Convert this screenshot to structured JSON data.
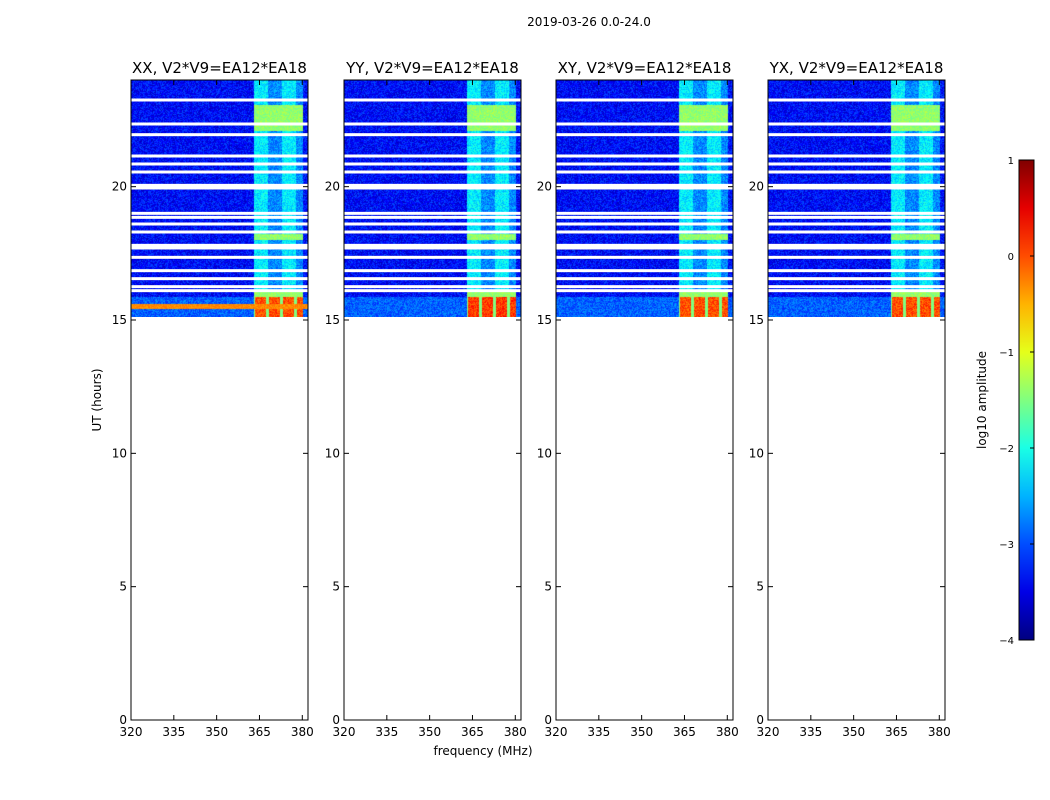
{
  "figure": {
    "suptitle": "2019-03-26 0.0-24.0",
    "xlabel": "frequency (MHz)",
    "ylabel": "UT (hours)"
  },
  "colors": {
    "colormap": "jet",
    "background": "#ffffff",
    "axis": "#000000",
    "flag": "#ffffff"
  },
  "chart_data": {
    "type": "heatmap",
    "title": "2019-03-26 0.0-24.0",
    "xlabel": "frequency (MHz)",
    "ylabel": "UT (hours)",
    "xlim": [
      320,
      382
    ],
    "ylim": [
      0,
      24
    ],
    "xticks": [
      320,
      335,
      350,
      365,
      380
    ],
    "yticks": [
      0,
      5,
      10,
      15,
      20
    ],
    "data_range_hours": [
      15.1,
      24.0
    ],
    "bright_band_mhz": [
      363,
      380
    ],
    "flagged_rows_hours": [
      23.25,
      22.35,
      21.95,
      21.15,
      20.85,
      20.55,
      20.05,
      19.95,
      19.0,
      18.85,
      18.6,
      18.3,
      17.8,
      17.7,
      17.35,
      16.85,
      16.55,
      16.25,
      16.1
    ],
    "panels": [
      {
        "name": "XX",
        "title": "XX, V2*V9=EA12*EA18",
        "peak_log_amplitude": 0.3,
        "has_rfi_line": true
      },
      {
        "name": "YY",
        "title": "YY, V2*V9=EA12*EA18",
        "peak_log_amplitude": 0.4,
        "has_rfi_line": false
      },
      {
        "name": "XY",
        "title": "XY, V2*V9=EA12*EA18",
        "peak_log_amplitude": 0.3,
        "has_rfi_line": false
      },
      {
        "name": "YX",
        "title": "YX, V2*V9=EA12*EA18",
        "peak_log_amplitude": 0.3,
        "has_rfi_line": false
      }
    ],
    "colorbar": {
      "label": "log10 amplitude",
      "min": -4,
      "max": 1,
      "ticks": [
        1,
        0,
        -1,
        -2,
        -3,
        -4
      ],
      "tick_labels": [
        "1",
        "0",
        "−1",
        "−2",
        "−3",
        "−4"
      ]
    }
  }
}
